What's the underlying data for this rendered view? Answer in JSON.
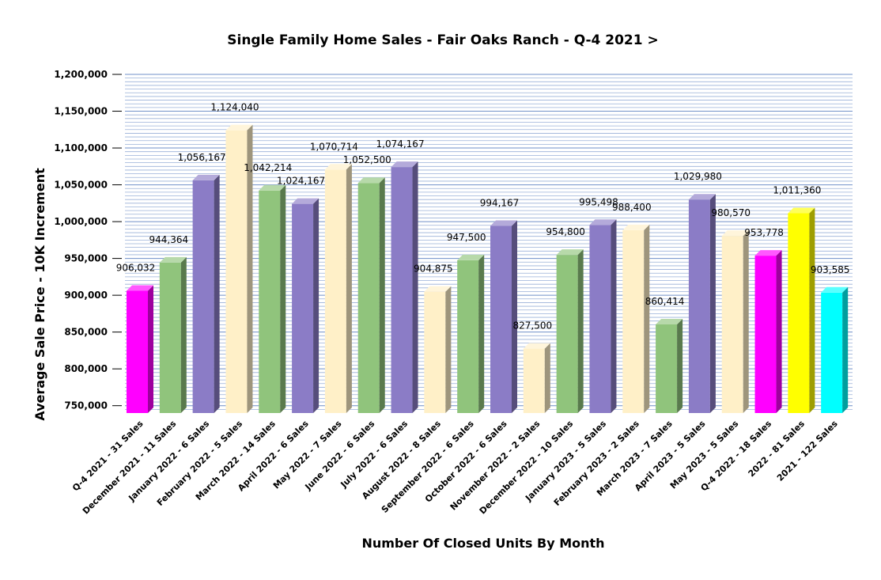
{
  "chart_data": {
    "type": "bar",
    "title": "Single Family Home Sales - Fair Oaks Ranch - Q-4 2021 >",
    "xlabel": "Number Of Closed Units By Month",
    "ylabel": "Average Sale Price - 10K Increment",
    "ylim": [
      740000,
      1200000
    ],
    "yticks": [
      750000,
      800000,
      850000,
      900000,
      950000,
      1000000,
      1050000,
      1100000,
      1150000,
      1200000
    ],
    "ytick_labels": [
      "750,000",
      "800,000",
      "850,000",
      "900,000",
      "950,000",
      "1,000,000",
      "1,050,000",
      "1,100,000",
      "1,150,000",
      "1,200,000"
    ],
    "grid": true,
    "categories": [
      "Q-4 2021 - 31 Sales",
      "December 2021 - 11 Sales",
      "January 2022 - 6 Sales",
      "February 2022 - 5 Sales",
      "March 2022 - 14 Sales",
      "April 2022 - 6 Sales",
      "May 2022 - 7 Sales",
      "June 2022 - 6 Sales",
      "July 2022 - 6 Sales",
      "August 2022 - 8 Sales",
      "September 2022 - 6 Sales",
      "October 2022 - 6 Sales",
      "November 2022 - 2 Sales",
      "December 2022 - 10 Sales",
      "January 2023 - 5 Sales",
      "February 2023 - 2 Sales",
      "March 2023 - 7 Sales",
      "April 2023 - 5 Sales",
      "May 2023 - 5 Sales",
      "Q-4 2022 - 18 Sales",
      "2022 - 81 Sales",
      "2021 - 122 Sales"
    ],
    "values": [
      906032,
      944364,
      1056167,
      1124040,
      1042214,
      1024167,
      1070714,
      1052500,
      1074167,
      904875,
      947500,
      994167,
      827500,
      954800,
      995498,
      988400,
      860414,
      1029980,
      980570,
      953778,
      1011360,
      903585
    ],
    "value_labels": [
      "906,032",
      "944,364",
      "1,056,167",
      "1,124,040",
      "1,042,214",
      "1,024,167",
      "1,070,714",
      "1,052,500",
      "1,074,167",
      "904,875",
      "947,500",
      "994,167",
      "827,500",
      "954,800",
      "995,498",
      "988,400",
      "860,414",
      "1,029,980",
      "980,570",
      "953,778",
      "1,011,360",
      "903,585"
    ],
    "colors": [
      "#ff00ff",
      "#90c47c",
      "#8b7cc6",
      "#fff0c8",
      "#90c47c",
      "#8b7cc6",
      "#fff0c8",
      "#90c47c",
      "#8b7cc6",
      "#fff0c8",
      "#90c47c",
      "#8b7cc6",
      "#fff0c8",
      "#90c47c",
      "#8b7cc6",
      "#fff0c8",
      "#90c47c",
      "#8b7cc6",
      "#fff0c8",
      "#ff00ff",
      "#ffff00",
      "#00ffff"
    ],
    "gridline_color": "#9ab0d8"
  }
}
